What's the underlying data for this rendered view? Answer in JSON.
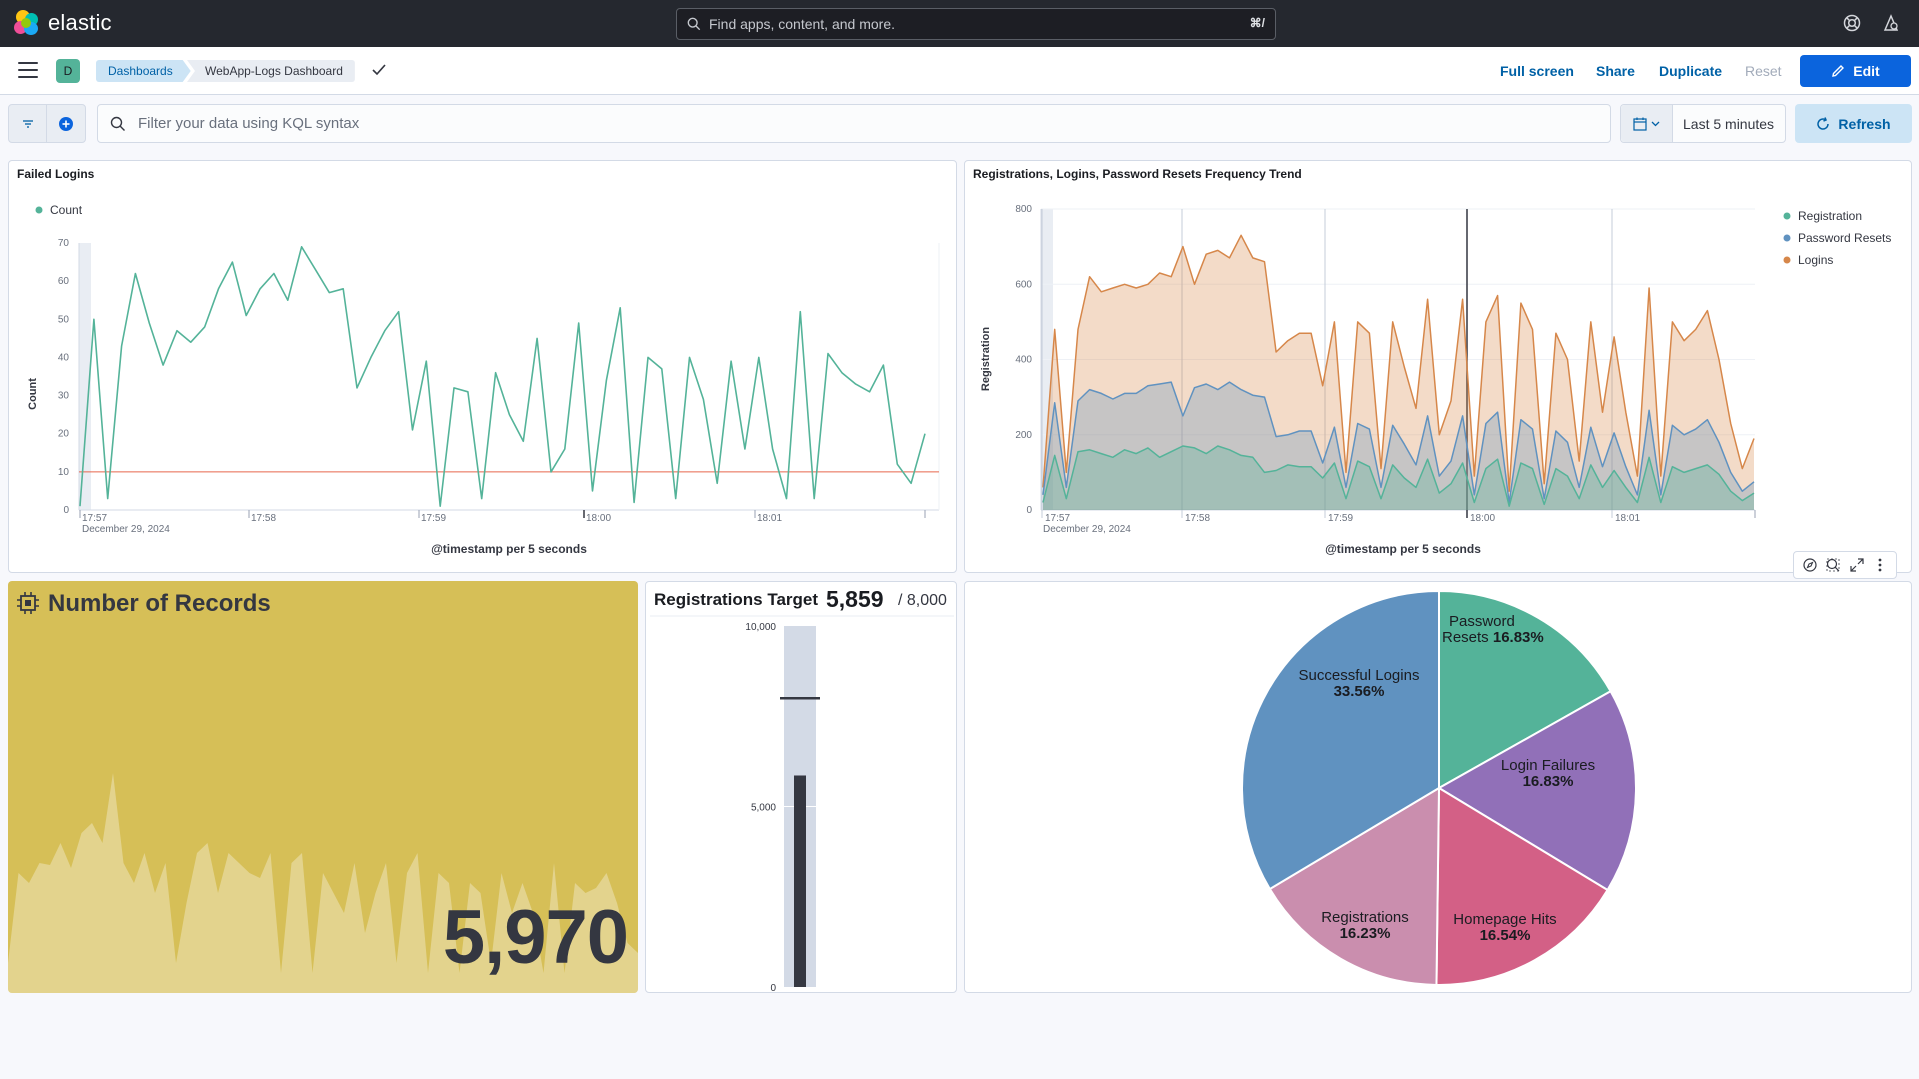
{
  "header": {
    "brand": "elastic",
    "search_placeholder": "Find apps, content, and more.",
    "search_shortcut": "⌘/"
  },
  "breadcrumbs": {
    "space_initial": "D",
    "items": [
      "Dashboards",
      "WebApp-Logs Dashboard"
    ]
  },
  "toolbar": {
    "full_screen": "Full screen",
    "share": "Share",
    "duplicate": "Duplicate",
    "reset": "Reset",
    "edit": "Edit"
  },
  "query": {
    "placeholder": "Filter your data using KQL syntax",
    "time_range": "Last 5 minutes",
    "refresh": "Refresh"
  },
  "panels": {
    "failed_logins": {
      "title": "Failed Logins",
      "legend": "Count",
      "xlabel": "@timestamp per 5 seconds",
      "ylabel": "Count",
      "date_label": "December 29, 2024"
    },
    "trend": {
      "title": "Registrations, Logins, Password Resets Frequency Trend",
      "xlabel": "@timestamp per 5 seconds",
      "ylabel": "Registration",
      "date_label": "December 29, 2024"
    },
    "records": {
      "title": "Number of Records",
      "value": "5,970"
    },
    "gauge": {
      "title": "Registrations Target",
      "value": "5,859",
      "target": "/ 8,000"
    }
  },
  "colors": {
    "green": "#54b399",
    "blue": "#6092c0",
    "orange": "#d6874a",
    "threshold": "#e7664c",
    "metric_bg": "#d6bf57",
    "accent": "#0b64dd"
  },
  "chart_data": [
    {
      "type": "line",
      "title": "Failed Logins",
      "xlabel": "@timestamp per 5 seconds",
      "ylabel": "Count",
      "x_ticks": [
        "17:57",
        "17:58",
        "17:59",
        "18:00",
        "18:01"
      ],
      "y_ticks": [
        0,
        10,
        20,
        30,
        40,
        50,
        60,
        70
      ],
      "ylim": [
        0,
        70
      ],
      "threshold": 10,
      "series": [
        {
          "name": "Count",
          "values": [
            1,
            50,
            3,
            43,
            62,
            49,
            38,
            47,
            44,
            48,
            58,
            65,
            51,
            58,
            62,
            55,
            69,
            63,
            57,
            58,
            32,
            40,
            47,
            52,
            21,
            39,
            1,
            32,
            31,
            3,
            36,
            25,
            18,
            45,
            10,
            16,
            49,
            5,
            34,
            53,
            2,
            40,
            37,
            3,
            40,
            29,
            7,
            39,
            16,
            40,
            16,
            3,
            52,
            3,
            41,
            36,
            33,
            31,
            38,
            12,
            7,
            20
          ]
        }
      ]
    },
    {
      "type": "area",
      "title": "Registrations, Logins, Password Resets Frequency Trend",
      "xlabel": "@timestamp per 5 seconds",
      "ylabel": "Registration",
      "x_ticks": [
        "17:57",
        "17:58",
        "17:59",
        "18:00",
        "18:01"
      ],
      "y_ticks": [
        0,
        200,
        400,
        600,
        800
      ],
      "ylim": [
        0,
        800
      ],
      "legend_position": "top-right",
      "series": [
        {
          "name": "Registration",
          "values": [
            20,
            145,
            30,
            155,
            160,
            150,
            140,
            160,
            150,
            165,
            140,
            155,
            170,
            165,
            150,
            170,
            160,
            145,
            140,
            100,
            105,
            120,
            115,
            115,
            85,
            125,
            30,
            130,
            115,
            30,
            120,
            85,
            60,
            135,
            45,
            70,
            125,
            20,
            110,
            135,
            10,
            125,
            110,
            15,
            110,
            90,
            30,
            120,
            60,
            105,
            60,
            20,
            140,
            20,
            115,
            100,
            110,
            120,
            95,
            50,
            25,
            45
          ]
        },
        {
          "name": "Password Resets",
          "values": [
            40,
            285,
            60,
            290,
            320,
            310,
            295,
            310,
            310,
            330,
            335,
            340,
            250,
            325,
            335,
            320,
            340,
            320,
            305,
            300,
            195,
            200,
            210,
            210,
            125,
            220,
            60,
            230,
            215,
            60,
            225,
            175,
            120,
            250,
            90,
            130,
            250,
            40,
            230,
            260,
            20,
            240,
            215,
            30,
            210,
            180,
            60,
            220,
            115,
            205,
            115,
            40,
            265,
            40,
            225,
            200,
            215,
            240,
            180,
            100,
            50,
            75
          ]
        },
        {
          "name": "Logins",
          "values": [
            60,
            480,
            100,
            480,
            620,
            580,
            590,
            600,
            590,
            600,
            630,
            620,
            700,
            600,
            680,
            690,
            670,
            730,
            670,
            660,
            420,
            450,
            470,
            470,
            330,
            500,
            100,
            500,
            470,
            110,
            500,
            380,
            270,
            560,
            200,
            290,
            560,
            90,
            500,
            570,
            50,
            550,
            480,
            70,
            470,
            400,
            130,
            500,
            260,
            460,
            260,
            90,
            590,
            90,
            500,
            450,
            480,
            530,
            400,
            230,
            110,
            190
          ]
        }
      ]
    },
    {
      "type": "area",
      "title": "Number of Records",
      "note": "background sparkline",
      "values": [
        30,
        120,
        110,
        130,
        128,
        150,
        125,
        160,
        170,
        150,
        220,
        130,
        110,
        140,
        100,
        130,
        30,
        90,
        140,
        150,
        100,
        140,
        130,
        120,
        115,
        140,
        20,
        130,
        140,
        20,
        120,
        100,
        80,
        130,
        60,
        100,
        130,
        30,
        120,
        140,
        20,
        120,
        110,
        20,
        110,
        100,
        30,
        120,
        80,
        110,
        80,
        20,
        130,
        20,
        110,
        100,
        105,
        120,
        90,
        50,
        40
      ]
    },
    {
      "type": "bar",
      "title": "Registrations Target",
      "value": 5859,
      "target": 8000,
      "y_ticks": [
        "10,000",
        "5,000",
        "0"
      ],
      "ylim": [
        0,
        10000
      ]
    },
    {
      "type": "pie",
      "slices": [
        {
          "name": "Password Resets",
          "label": "Password Resets",
          "value": 16.83,
          "color": "#54b399"
        },
        {
          "name": "Login Failures",
          "label": "Login Failures",
          "value": 16.83,
          "color": "#9170b8"
        },
        {
          "name": "Homepage Hits",
          "label": "Homepage Hits",
          "value": 16.54,
          "color": "#d36086"
        },
        {
          "name": "Registrations",
          "label": "Registrations",
          "value": 16.23,
          "color": "#ca8eae"
        },
        {
          "name": "Successful Logins",
          "label": "Successful Logins",
          "value": 33.56,
          "color": "#6092c0"
        }
      ]
    }
  ]
}
